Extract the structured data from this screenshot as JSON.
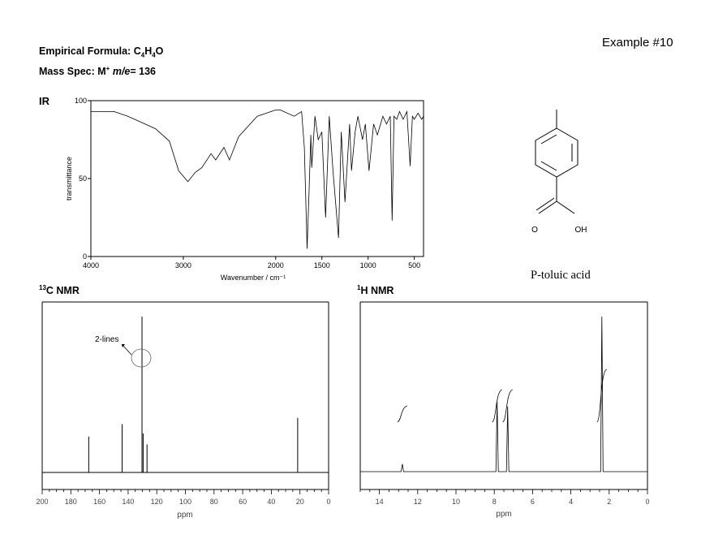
{
  "header": {
    "example_label": "Example #10",
    "formula_prefix": "Empirical Formula: C",
    "formula_c_sub": "4",
    "formula_h": "H",
    "formula_h_sub": "4",
    "formula_o": "O",
    "mass_prefix": "Mass Spec: M",
    "mass_sup": "+",
    "mass_italic": "m/e",
    "mass_value": "= 136"
  },
  "compound": {
    "name": "P-toluic acid",
    "atom_o": "O",
    "atom_oh": "OH"
  },
  "chart_data": [
    {
      "type": "line",
      "title": "IR",
      "xlabel": "Wavenumber / cm⁻¹",
      "ylabel": "transmittance",
      "xlim": [
        4000,
        400
      ],
      "ylim": [
        0,
        100
      ],
      "x_ticks": [
        "4000",
        "3000",
        "2000",
        "1500",
        "1000",
        "500"
      ],
      "y_ticks": [
        "100",
        "50",
        "0"
      ],
      "x": [
        4000,
        3750,
        3600,
        3450,
        3300,
        3150,
        3050,
        2950,
        2870,
        2800,
        2700,
        2650,
        2560,
        2500,
        2400,
        2200,
        2000,
        1950,
        1800,
        1720,
        1690,
        1660,
        1640,
        1620,
        1610,
        1575,
        1540,
        1500,
        1460,
        1420,
        1380,
        1320,
        1290,
        1250,
        1200,
        1180,
        1140,
        1110,
        1060,
        1030,
        990,
        940,
        900,
        840,
        800,
        760,
        740,
        720,
        690,
        660,
        620,
        580,
        545,
        520,
        500,
        460,
        420,
        400
      ],
      "y": [
        93,
        93,
        90,
        86,
        82,
        74,
        55,
        48,
        54,
        57,
        66,
        62,
        70,
        62,
        77,
        90,
        94,
        94,
        90,
        93,
        70,
        5,
        40,
        78,
        57,
        90,
        75,
        80,
        25,
        90,
        55,
        12,
        80,
        35,
        85,
        55,
        80,
        90,
        75,
        85,
        55,
        85,
        78,
        90,
        85,
        90,
        23,
        90,
        88,
        93,
        88,
        93,
        58,
        90,
        88,
        92,
        88,
        90
      ]
    },
    {
      "type": "bar",
      "title": "13C NMR",
      "xlabel": "ppm",
      "xlim": [
        200,
        0
      ],
      "x_ticks": [
        "200",
        "180",
        "160",
        "140",
        "120",
        "100",
        "80",
        "60",
        "40",
        "20",
        "0"
      ],
      "peaks_ppm": [
        167.5,
        144.2,
        130.3,
        129.5,
        126.8,
        21.6
      ],
      "peak_heights": [
        0.23,
        0.31,
        1.0,
        0.25,
        0.18,
        0.35
      ],
      "annotation": "2-lines"
    },
    {
      "type": "line",
      "title": "1H NMR",
      "xlabel": "ppm",
      "xlim": [
        15,
        0
      ],
      "x_ticks": [
        "14",
        "12",
        "10",
        "8",
        "6",
        "4",
        "2",
        "0"
      ],
      "peaks_ppm": [
        12.8,
        7.85,
        7.3,
        2.38
      ],
      "peak_heights": [
        0.05,
        0.45,
        0.42,
        1.0
      ],
      "integrals": [
        1,
        2,
        2,
        3
      ]
    }
  ]
}
